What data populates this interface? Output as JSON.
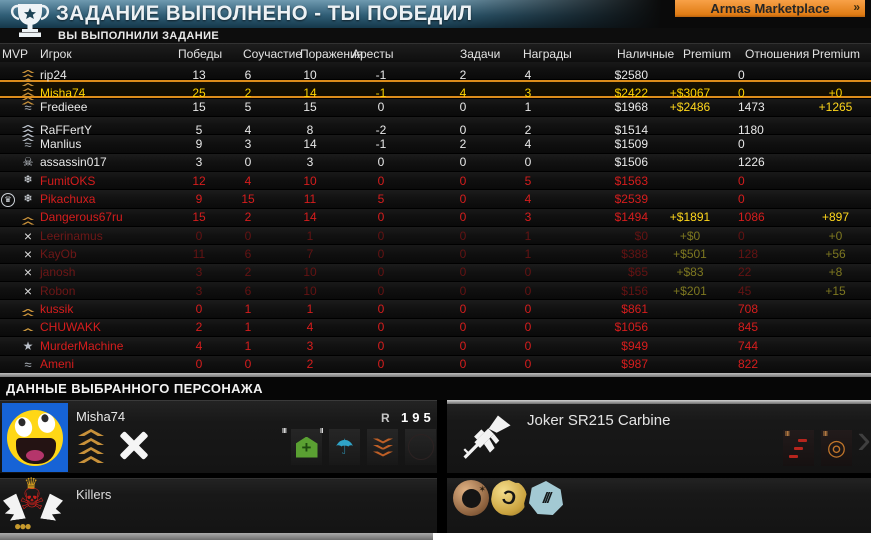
{
  "header": {
    "title": "ЗАДАНИЕ ВЫПОЛНЕНО - ТЫ ПОБЕДИЛ",
    "subtitle": "ВЫ ВЫПОЛНИЛИ ЗАДАНИЕ",
    "armas_label": "Armas Marketplace",
    "armas_arrow": "»"
  },
  "colors": {
    "armas_orange": "#e8871d",
    "highlight_yellow": "#ffd400",
    "highlight_border_orange": "#dd8d1b",
    "premium_yellow": "#ffd71c",
    "enemy_red": "#d61d1d",
    "faded_red": "#641313",
    "gold_rank": "#c8913a",
    "silver_rank": "#b7bdc6"
  },
  "table": {
    "columns": [
      "MVP",
      "Игрок",
      "Победы",
      "Соучастие",
      "Поражения",
      "Аресты",
      "Задачи",
      "Награды",
      "Наличные",
      "Premium",
      "Отношения",
      "Premium"
    ],
    "rows": [
      {
        "mvp": false,
        "icon": "rank-gold-4",
        "name": "rip24",
        "wins": "13",
        "assists": "6",
        "deaths": "10",
        "arrests": "-1",
        "tasks": "2",
        "rewards": "4",
        "cash": "$2580",
        "premium_cash": "",
        "standing": "0",
        "premium_standing": "",
        "style": "white"
      },
      {
        "mvp": false,
        "icon": "rank-gold-4",
        "name": "Misha74",
        "wins": "25",
        "assists": "2",
        "deaths": "14",
        "arrests": "-1",
        "tasks": "4",
        "rewards": "3",
        "cash": "$2422",
        "premium_cash": "+$3067",
        "standing": "0",
        "premium_standing": "+0",
        "style": "highlight"
      },
      {
        "mvp": false,
        "icon": "wings-silver",
        "name": "Fredieee",
        "wins": "15",
        "assists": "5",
        "deaths": "15",
        "arrests": "0",
        "tasks": "0",
        "rewards": "1",
        "cash": "$1968",
        "premium_cash": "+$2486",
        "standing": "1473",
        "premium_standing": "+1265",
        "style": "white"
      },
      {
        "mvp": false,
        "icon": "rank-silver-4",
        "name": "RaFFertY",
        "wins": "5",
        "assists": "4",
        "deaths": "8",
        "arrests": "-2",
        "tasks": "0",
        "rewards": "2",
        "cash": "$1514",
        "premium_cash": "",
        "standing": "1180",
        "premium_standing": "",
        "style": "white"
      },
      {
        "mvp": false,
        "icon": "wings-silver",
        "name": "Manlius",
        "wins": "9",
        "assists": "3",
        "deaths": "14",
        "arrests": "-1",
        "tasks": "2",
        "rewards": "4",
        "cash": "$1509",
        "premium_cash": "",
        "standing": "0",
        "premium_standing": "",
        "style": "white"
      },
      {
        "mvp": false,
        "icon": "skull",
        "name": "assassin017",
        "wins": "3",
        "assists": "0",
        "deaths": "3",
        "arrests": "0",
        "tasks": "0",
        "rewards": "0",
        "cash": "$1506",
        "premium_cash": "",
        "standing": "1226",
        "premium_standing": "",
        "style": "white"
      },
      {
        "mvp": false,
        "icon": "snowflake",
        "name": "FumitOKS",
        "wins": "12",
        "assists": "4",
        "deaths": "10",
        "arrests": "0",
        "tasks": "0",
        "rewards": "5",
        "cash": "$1563",
        "premium_cash": "",
        "standing": "0",
        "premium_standing": "",
        "style": "red"
      },
      {
        "mvp": true,
        "icon": "snowflake",
        "name": "Pikachuxa",
        "wins": "9",
        "assists": "15",
        "deaths": "11",
        "arrests": "5",
        "tasks": "0",
        "rewards": "4",
        "cash": "$2539",
        "premium_cash": "",
        "standing": "0",
        "premium_standing": "",
        "style": "red"
      },
      {
        "mvp": false,
        "icon": "rank-gold-2",
        "name": "Dangerous67ru",
        "wins": "15",
        "assists": "2",
        "deaths": "14",
        "arrests": "0",
        "tasks": "0",
        "rewards": "3",
        "cash": "$1494",
        "premium_cash": "+$1891",
        "standing": "1086",
        "premium_standing": "+897",
        "style": "red"
      },
      {
        "mvp": false,
        "icon": "left-x",
        "name": "Leerinamus",
        "wins": "0",
        "assists": "0",
        "deaths": "1",
        "arrests": "0",
        "tasks": "0",
        "rewards": "1",
        "cash": "$0",
        "premium_cash": "+$0",
        "standing": "0",
        "premium_standing": "+0",
        "style": "faded"
      },
      {
        "mvp": false,
        "icon": "left-x",
        "name": "KayOb",
        "wins": "11",
        "assists": "6",
        "deaths": "7",
        "arrests": "0",
        "tasks": "0",
        "rewards": "1",
        "cash": "$388",
        "premium_cash": "+$501",
        "standing": "128",
        "premium_standing": "+56",
        "style": "faded"
      },
      {
        "mvp": false,
        "icon": "left-x",
        "name": "janosh",
        "wins": "3",
        "assists": "2",
        "deaths": "10",
        "arrests": "0",
        "tasks": "0",
        "rewards": "0",
        "cash": "$65",
        "premium_cash": "+$83",
        "standing": "22",
        "premium_standing": "+8",
        "style": "faded"
      },
      {
        "mvp": false,
        "icon": "left-x",
        "name": "Robon",
        "wins": "3",
        "assists": "6",
        "deaths": "10",
        "arrests": "0",
        "tasks": "0",
        "rewards": "0",
        "cash": "$156",
        "premium_cash": "+$201",
        "standing": "45",
        "premium_standing": "+15",
        "style": "faded"
      },
      {
        "mvp": false,
        "icon": "rank-gold-2",
        "name": "kussik",
        "wins": "0",
        "assists": "1",
        "deaths": "1",
        "arrests": "0",
        "tasks": "0",
        "rewards": "0",
        "cash": "$861",
        "premium_cash": "",
        "standing": "708",
        "premium_standing": "",
        "style": "red"
      },
      {
        "mvp": false,
        "icon": "rank-gold-1",
        "name": "CHUWAKK",
        "wins": "2",
        "assists": "1",
        "deaths": "4",
        "arrests": "0",
        "tasks": "0",
        "rewards": "0",
        "cash": "$1056",
        "premium_cash": "",
        "standing": "845",
        "premium_standing": "",
        "style": "red"
      },
      {
        "mvp": false,
        "icon": "star-silver",
        "name": "MurderMachine",
        "wins": "4",
        "assists": "1",
        "deaths": "3",
        "arrests": "0",
        "tasks": "0",
        "rewards": "0",
        "cash": "$949",
        "premium_cash": "",
        "standing": "744",
        "premium_standing": "",
        "style": "red"
      },
      {
        "mvp": false,
        "icon": "wings-silver",
        "name": "Ameni",
        "wins": "0",
        "assists": "0",
        "deaths": "2",
        "arrests": "0",
        "tasks": "0",
        "rewards": "0",
        "cash": "$987",
        "premium_cash": "",
        "standing": "822",
        "premium_standing": "",
        "style": "red"
      }
    ]
  },
  "details": {
    "section_title": "ДАННЫЕ ВЫБРАННОГО ПЕРСОНАЖА",
    "player": {
      "name": "Misha74",
      "rating_label": "R",
      "rating_value": "195",
      "mods": [
        {
          "tier": "III",
          "type": "med-spray"
        },
        {
          "tier": "II",
          "type": "parachute"
        },
        {
          "tier": "",
          "type": "orange-chevrons"
        },
        {
          "tier": "",
          "type": "empty-slot"
        }
      ]
    },
    "weapon": {
      "name": "Joker SR215 Carbine",
      "arrow": "›",
      "mods": [
        {
          "tier": "III",
          "type": "red-bullets"
        },
        {
          "tier": "III",
          "type": "scope-rings"
        }
      ]
    },
    "clan": {
      "name": "Killers"
    },
    "medals": [
      {
        "type": "bomb-medal"
      },
      {
        "type": "gold-hook-medal"
      },
      {
        "type": "blue-claw-medal"
      }
    ]
  }
}
